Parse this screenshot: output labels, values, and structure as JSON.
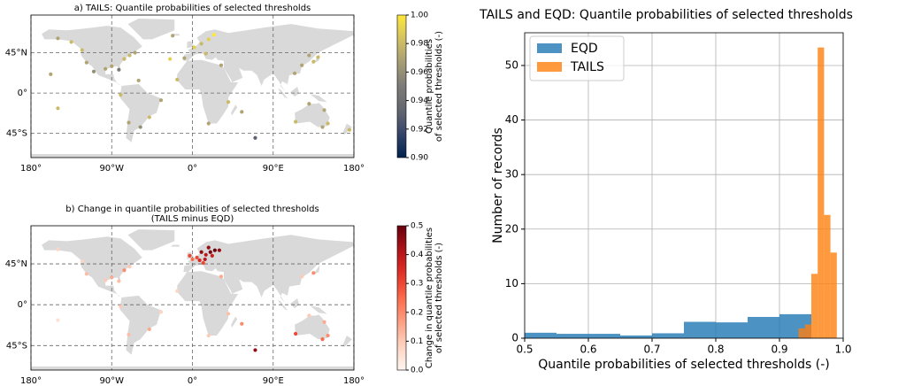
{
  "chart_data": [
    {
      "type": "map-scatter",
      "title": "a) TAILS: Quantile probabilities of selected thresholds",
      "x": [
        -123,
        -118,
        -110,
        -97,
        -90,
        -82,
        -76,
        -70,
        -64,
        -150,
        -135,
        -158,
        -80,
        -71,
        -58,
        -48,
        -35,
        -25,
        -9,
        2,
        10,
        18,
        24,
        -22,
        15,
        32,
        18,
        40,
        55,
        70,
        135,
        140,
        130,
        122,
        114,
        151,
        145,
        115,
        147,
        175,
        130,
        -150,
        -17,
        -60
      ],
      "y": [
        48,
        34,
        24,
        27,
        30,
        26,
        38,
        42,
        45,
        61,
        57,
        21,
        -2,
        -33,
        -38,
        -27,
        -8,
        38,
        39,
        51,
        55,
        60,
        65,
        64,
        44,
        31,
        -34,
        -10,
        -21,
        -50,
        35,
        40,
        42,
        31,
        22,
        -34,
        -38,
        -32,
        -19,
        -41,
        -12,
        -17,
        15,
        14
      ],
      "values": [
        0.98,
        0.97,
        0.96,
        0.97,
        0.97,
        0.95,
        0.98,
        0.98,
        0.97,
        0.97,
        0.98,
        0.97,
        0.98,
        0.97,
        0.96,
        0.98,
        0.97,
        0.99,
        0.97,
        0.99,
        0.98,
        0.99,
        1.0,
        0.97,
        0.98,
        0.97,
        0.97,
        0.98,
        0.97,
        0.93,
        0.98,
        0.98,
        0.97,
        0.97,
        0.97,
        0.98,
        0.97,
        0.98,
        0.97,
        0.98,
        0.97,
        0.98,
        0.98,
        0.97
      ],
      "xlim": [
        -180,
        180
      ],
      "ylim": [
        -72,
        87
      ],
      "xticks": [
        {
          "value": -180,
          "label": "180°"
        },
        {
          "value": -90,
          "label": "90°W"
        },
        {
          "value": 0,
          "label": "0°"
        },
        {
          "value": 90,
          "label": "90°E"
        },
        {
          "value": 180,
          "label": "180°"
        }
      ],
      "yticks": [
        {
          "value": -45,
          "label": "45°S"
        },
        {
          "value": 0,
          "label": "0°"
        },
        {
          "value": 45,
          "label": "45°N"
        }
      ],
      "colormap": "cividis",
      "clim": [
        0.9,
        1
      ],
      "cticks": [
        {
          "value": 0.9,
          "label": "0.90"
        },
        0.92,
        0.94,
        0.96,
        0.98,
        {
          "value": 1,
          "label": "1.00"
        }
      ],
      "colorbar_label": [
        "Quantile probabilities",
        "of selected thresholds (-)"
      ]
    },
    {
      "type": "map-scatter",
      "title": "b) Change in quantile probabilities of selected thresholds",
      "subtitle": "(TAILS minus EQD)",
      "x": [
        10,
        15,
        20,
        25,
        18,
        5,
        0,
        8,
        14,
        -3,
        30,
        22,
        12,
        -123,
        -118,
        -97,
        -90,
        -82,
        -76,
        -70,
        -150,
        -80,
        -71,
        -48,
        -35,
        18,
        40,
        135,
        122,
        151,
        145,
        115,
        147,
        130,
        70,
        -150,
        -17,
        32,
        55
      ],
      "y": [
        58,
        55,
        58,
        60,
        63,
        52,
        50,
        49,
        50,
        54,
        60,
        54,
        46,
        48,
        34,
        27,
        30,
        26,
        38,
        42,
        61,
        -2,
        -33,
        -27,
        -8,
        -34,
        -10,
        35,
        31,
        -34,
        -38,
        -32,
        -19,
        -12,
        -50,
        -17,
        15,
        31,
        -21
      ],
      "values": [
        0.45,
        0.4,
        0.48,
        0.5,
        0.45,
        0.3,
        0.25,
        0.35,
        0.4,
        0.3,
        0.45,
        0.38,
        0.3,
        0.08,
        0.12,
        0.1,
        0.15,
        0.12,
        0.2,
        0.1,
        0.08,
        0.1,
        0.12,
        0.15,
        0.08,
        0.1,
        0.12,
        0.2,
        0.1,
        0.2,
        0.25,
        0.3,
        0.15,
        0.1,
        0.45,
        0.05,
        0.08,
        0.15,
        0.2
      ],
      "xlim": [
        -180,
        180
      ],
      "ylim": [
        -72,
        87
      ],
      "xticks": [
        {
          "value": -180,
          "label": "180°"
        },
        {
          "value": -90,
          "label": "90°W"
        },
        {
          "value": 0,
          "label": "0°"
        },
        {
          "value": 90,
          "label": "90°E"
        },
        {
          "value": 180,
          "label": "180°"
        }
      ],
      "yticks": [
        {
          "value": -45,
          "label": "45°S"
        },
        {
          "value": 0,
          "label": "0°"
        },
        {
          "value": 45,
          "label": "45°N"
        }
      ],
      "colormap": "Reds",
      "clim": [
        0,
        0.5
      ],
      "cticks": [
        {
          "value": 0,
          "label": "0.0"
        },
        0.1,
        0.2,
        0.3,
        0.4,
        0.5
      ],
      "colorbar_label": [
        "Change in quantile probabilities",
        "of selected thresholds (-)"
      ]
    },
    {
      "type": "histogram",
      "title": "TAILS and EQD: Quantile probabilities of selected thresholds",
      "xlabel": "Quantile probabilities of selected thresholds (-)",
      "ylabel": "Number of records",
      "series": [
        {
          "name": "EQD",
          "color": "#1f77b4",
          "bins": [
            0.5,
            0.55,
            0.6,
            0.65,
            0.7,
            0.75,
            0.8,
            0.85,
            0.9,
            0.95
          ],
          "values": [
            1.0,
            0.8,
            0.8,
            0.5,
            0.9,
            3.0,
            2.9,
            3.9,
            4.4
          ]
        },
        {
          "name": "TAILS",
          "color": "#ff7f0e",
          "bins": [
            0.93,
            0.94,
            0.95,
            0.96,
            0.97,
            0.98,
            0.99
          ],
          "values": [
            1.8,
            2.5,
            11.8,
            53.3,
            22.6,
            15.7
          ]
        }
      ],
      "alpha": 0.8,
      "xlim": [
        0.5,
        1
      ],
      "ylim": [
        0,
        56
      ],
      "xticks": [
        0.5,
        0.6,
        0.7,
        0.8,
        0.9,
        {
          "value": 1,
          "label": "1.0"
        }
      ],
      "yticks": [
        0,
        10,
        20,
        30,
        40,
        50
      ],
      "grid": true,
      "legend": "upper left"
    }
  ]
}
